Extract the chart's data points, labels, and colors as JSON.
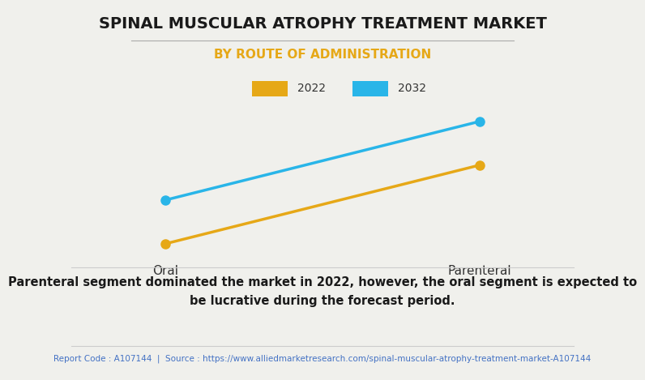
{
  "title": "SPINAL MUSCULAR ATROPHY TREATMENT MARKET",
  "subtitle": "BY ROUTE OF ADMINISTRATION",
  "categories": [
    "Oral",
    "Parenteral"
  ],
  "series": [
    {
      "label": "2022",
      "values": [
        0.08,
        0.62
      ],
      "color": "#E6A817",
      "marker": "o",
      "linewidth": 2.5,
      "markersize": 8
    },
    {
      "label": "2032",
      "values": [
        0.38,
        0.92
      ],
      "color": "#29B5E8",
      "marker": "o",
      "linewidth": 2.5,
      "markersize": 8
    }
  ],
  "ylim": [
    0,
    1.05
  ],
  "background_color": "#F0F0EC",
  "plot_background_color": "#F0F0EC",
  "grid_color": "#FFFFFF",
  "title_fontsize": 14,
  "subtitle_fontsize": 11,
  "subtitle_color": "#E6A817",
  "title_color": "#1A1A1A",
  "footer_text": "Parenteral segment dominated the market in 2022, however, the oral segment is expected to\nbe lucrative during the forecast period.",
  "report_text": "Report Code : A107144  |  Source : https://www.alliedmarketresearch.com/spinal-muscular-atrophy-treatment-market-A107144",
  "footer_color": "#1A1A1A",
  "report_color": "#4472C4",
  "legend_box_colors": [
    "#E6A817",
    "#29B5E8"
  ],
  "legend_labels": [
    "2022",
    "2032"
  ],
  "underline_color": "#AAAAAA",
  "separator_color": "#CCCCCC"
}
